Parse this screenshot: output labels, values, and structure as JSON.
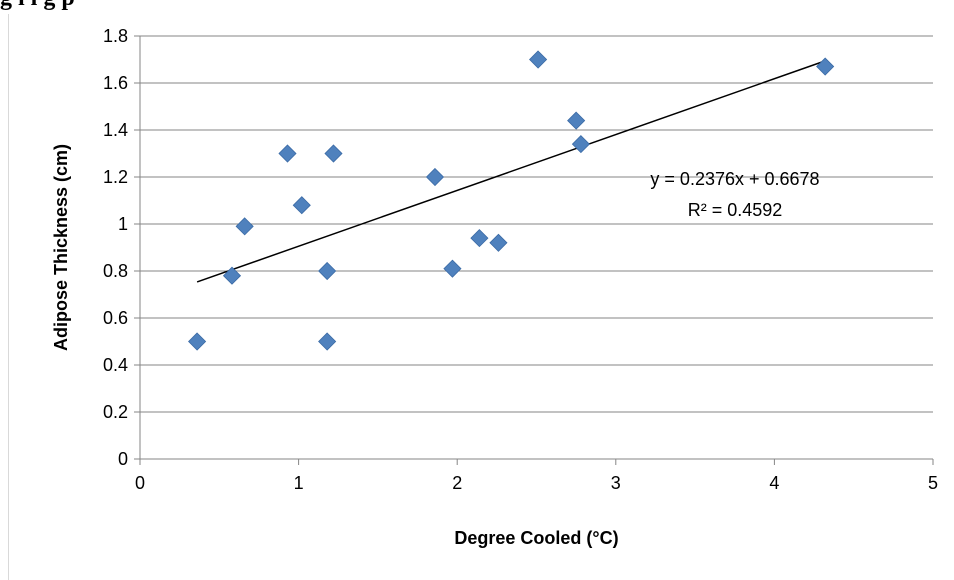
{
  "caption": "g        i         i   g                                               p",
  "chart_data": {
    "type": "scatter",
    "xlabel": "Degree Cooled (°C)",
    "ylabel": "Adipose Thickness (cm)",
    "xlim": [
      0,
      5
    ],
    "ylim": [
      0,
      1.8
    ],
    "xticks": [
      "0",
      "1",
      "2",
      "3",
      "4",
      "5"
    ],
    "yticks": [
      "0",
      "0.2",
      "0.4",
      "0.6",
      "0.8",
      "1",
      "1.2",
      "1.4",
      "1.6",
      "1.8"
    ],
    "grid": "horizontal",
    "legend": "none",
    "series": [
      {
        "x": [
          0.36,
          0.58,
          0.66,
          0.93,
          1.02,
          1.18,
          1.18,
          1.22,
          1.86,
          1.97,
          2.14,
          2.26,
          2.51,
          2.75,
          2.78,
          4.32
        ],
        "y": [
          0.5,
          0.78,
          0.99,
          1.3,
          1.08,
          0.8,
          0.5,
          1.3,
          1.2,
          0.81,
          0.94,
          0.92,
          1.7,
          1.44,
          1.34,
          1.67
        ],
        "color": "#4f81bd",
        "marker": "diamond"
      }
    ],
    "trendline": {
      "type": "linear",
      "slope": 0.2376,
      "intercept": 0.6678,
      "x_range": [
        0.36,
        4.32
      ],
      "color": "#000000",
      "equation": "y = 0.2376x + 0.6678",
      "r_squared": "R² = 0.4592"
    }
  }
}
